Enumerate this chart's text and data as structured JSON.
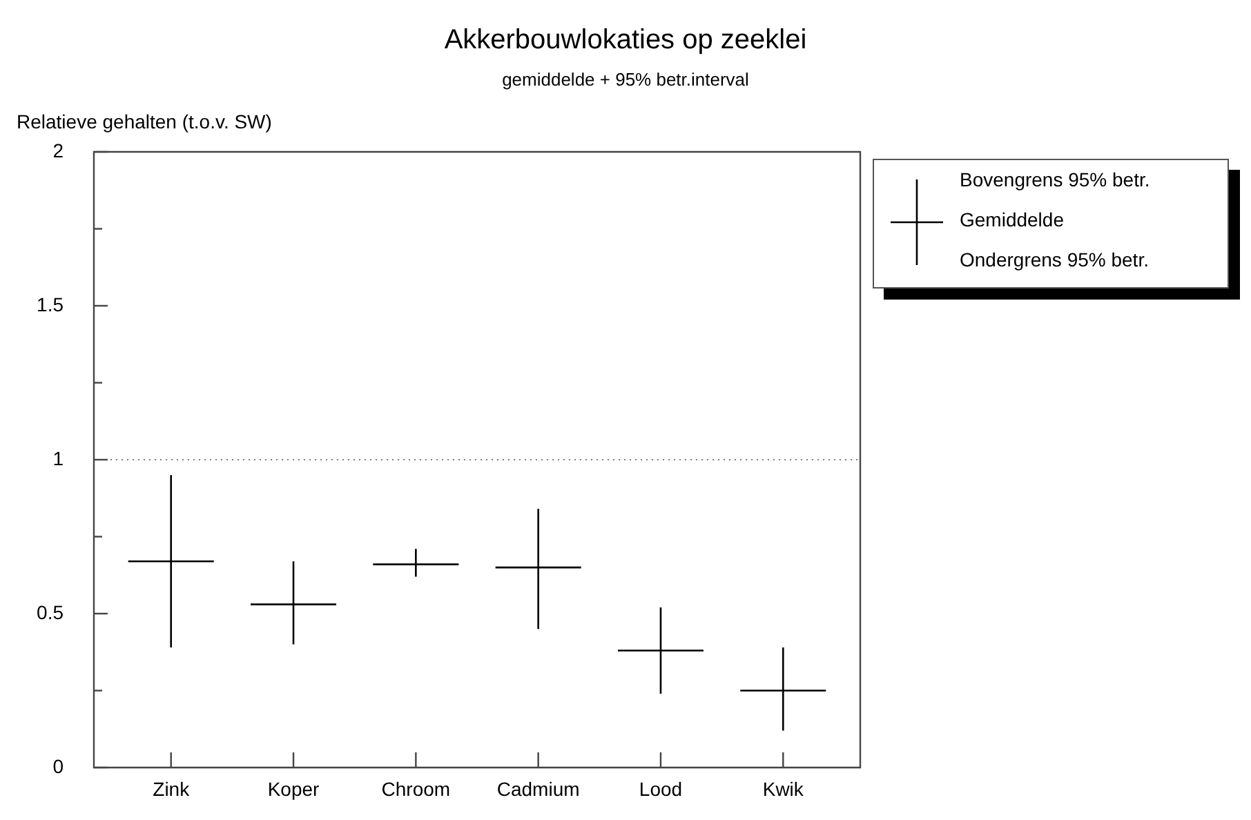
{
  "chart_data": {
    "type": "box",
    "title": "Akkerbouwlokaties op zeeklei",
    "subtitle": "gemiddelde + 95% betr.interval",
    "ylabel": "Relatieve gehalten (t.o.v. SW)",
    "categories": [
      "Zink",
      "Koper",
      "Chroom",
      "Cadmium",
      "Lood",
      "Kwik"
    ],
    "series": [
      {
        "name": "Gemiddelde",
        "color": "#000000",
        "boxes": [
          {
            "low": 0.39,
            "q1": 0.67,
            "median": 0.67,
            "q3": 0.67,
            "high": 0.95
          },
          {
            "low": 0.4,
            "q1": 0.53,
            "median": 0.53,
            "q3": 0.53,
            "high": 0.67
          },
          {
            "low": 0.62,
            "q1": 0.66,
            "median": 0.66,
            "q3": 0.66,
            "high": 0.71
          },
          {
            "low": 0.45,
            "q1": 0.65,
            "median": 0.65,
            "q3": 0.65,
            "high": 0.84
          },
          {
            "low": 0.24,
            "q1": 0.38,
            "median": 0.38,
            "q3": 0.38,
            "high": 0.52
          },
          {
            "low": 0.12,
            "q1": 0.25,
            "median": 0.25,
            "q3": 0.25,
            "high": 0.39
          }
        ]
      }
    ],
    "annotations": [
      "Bovengrens 95% betr.",
      "Ondergrens 95% betr."
    ],
    "ylim": [
      0,
      2
    ],
    "yticks": [
      0,
      {
        "value": 0.25,
        "label": null
      },
      0.5,
      {
        "value": 0.75,
        "label": null
      },
      1,
      {
        "value": 1.25,
        "label": null
      },
      1.5,
      {
        "value": 1.75,
        "label": null
      },
      2
    ],
    "ref_lines": [
      {
        "axis": "y",
        "value": 1,
        "color": "#808080",
        "line_style": "dotted"
      }
    ],
    "grid": false,
    "legend": "top right"
  }
}
